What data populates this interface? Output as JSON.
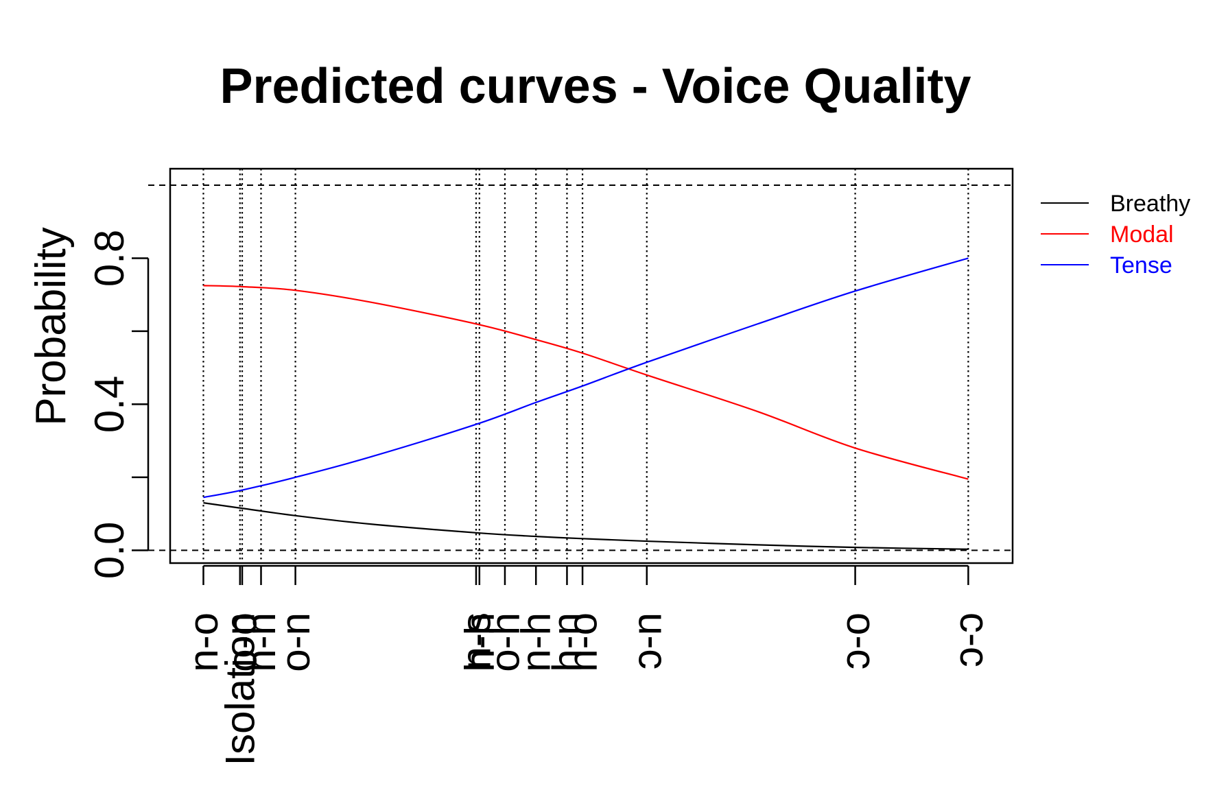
{
  "chart_data": {
    "type": "line",
    "title": "Predicted curves - Voice Quality",
    "xlabel": "",
    "ylabel": "Probability",
    "xlim": [
      -0.3,
      7.3
    ],
    "ylim": [
      -0.035,
      1.045
    ],
    "y_ticks": [
      0.0,
      0.2,
      0.4,
      0.6,
      0.8,
      1.0
    ],
    "y_tick_labels": [
      "0.0",
      "",
      "0.4",
      "",
      "0.8",
      ""
    ],
    "grid": false,
    "legend_position": "right",
    "x_ticks": [
      {
        "x": 0.0,
        "label": "n-o"
      },
      {
        "x": 0.33,
        "label": "Isolation"
      },
      {
        "x": 0.35,
        "label": "o-o"
      },
      {
        "x": 0.52,
        "label": "n-n"
      },
      {
        "x": 0.83,
        "label": "o-n"
      },
      {
        "x": 2.46,
        "label": "n-s"
      },
      {
        "x": 2.49,
        "label": "h-h"
      },
      {
        "x": 2.72,
        "label": "o-h"
      },
      {
        "x": 3.0,
        "label": "n-h"
      },
      {
        "x": 3.28,
        "label": "h-n"
      },
      {
        "x": 3.42,
        "label": "h-o"
      },
      {
        "x": 4.0,
        "label": "ɔ-n"
      },
      {
        "x": 5.88,
        "label": "ɔ-o"
      },
      {
        "x": 6.9,
        "label": "ɔ-ɔ"
      }
    ],
    "reference_lines_y": [
      0.0,
      1.0
    ],
    "series": [
      {
        "name": "Breathy",
        "color": "#000000",
        "x": [
          0.0,
          0.35,
          0.83,
          1.5,
          2.46,
          3.0,
          3.42,
          4.0,
          5.0,
          5.88,
          6.9
        ],
        "y": [
          0.13,
          0.115,
          0.095,
          0.072,
          0.048,
          0.038,
          0.032,
          0.025,
          0.015,
          0.008,
          0.003
        ]
      },
      {
        "name": "Modal",
        "color": "#ff0000",
        "x": [
          0.0,
          0.35,
          0.83,
          1.5,
          2.46,
          3.0,
          3.42,
          4.0,
          5.0,
          5.88,
          6.9
        ],
        "y": [
          0.725,
          0.722,
          0.712,
          0.68,
          0.62,
          0.577,
          0.54,
          0.48,
          0.38,
          0.28,
          0.195
        ]
      },
      {
        "name": "Tense",
        "color": "#0000ff",
        "x": [
          0.0,
          0.35,
          0.83,
          1.5,
          2.46,
          3.0,
          3.42,
          4.0,
          5.0,
          5.88,
          6.9
        ],
        "y": [
          0.145,
          0.165,
          0.2,
          0.255,
          0.345,
          0.405,
          0.45,
          0.515,
          0.62,
          0.71,
          0.8
        ]
      }
    ]
  }
}
